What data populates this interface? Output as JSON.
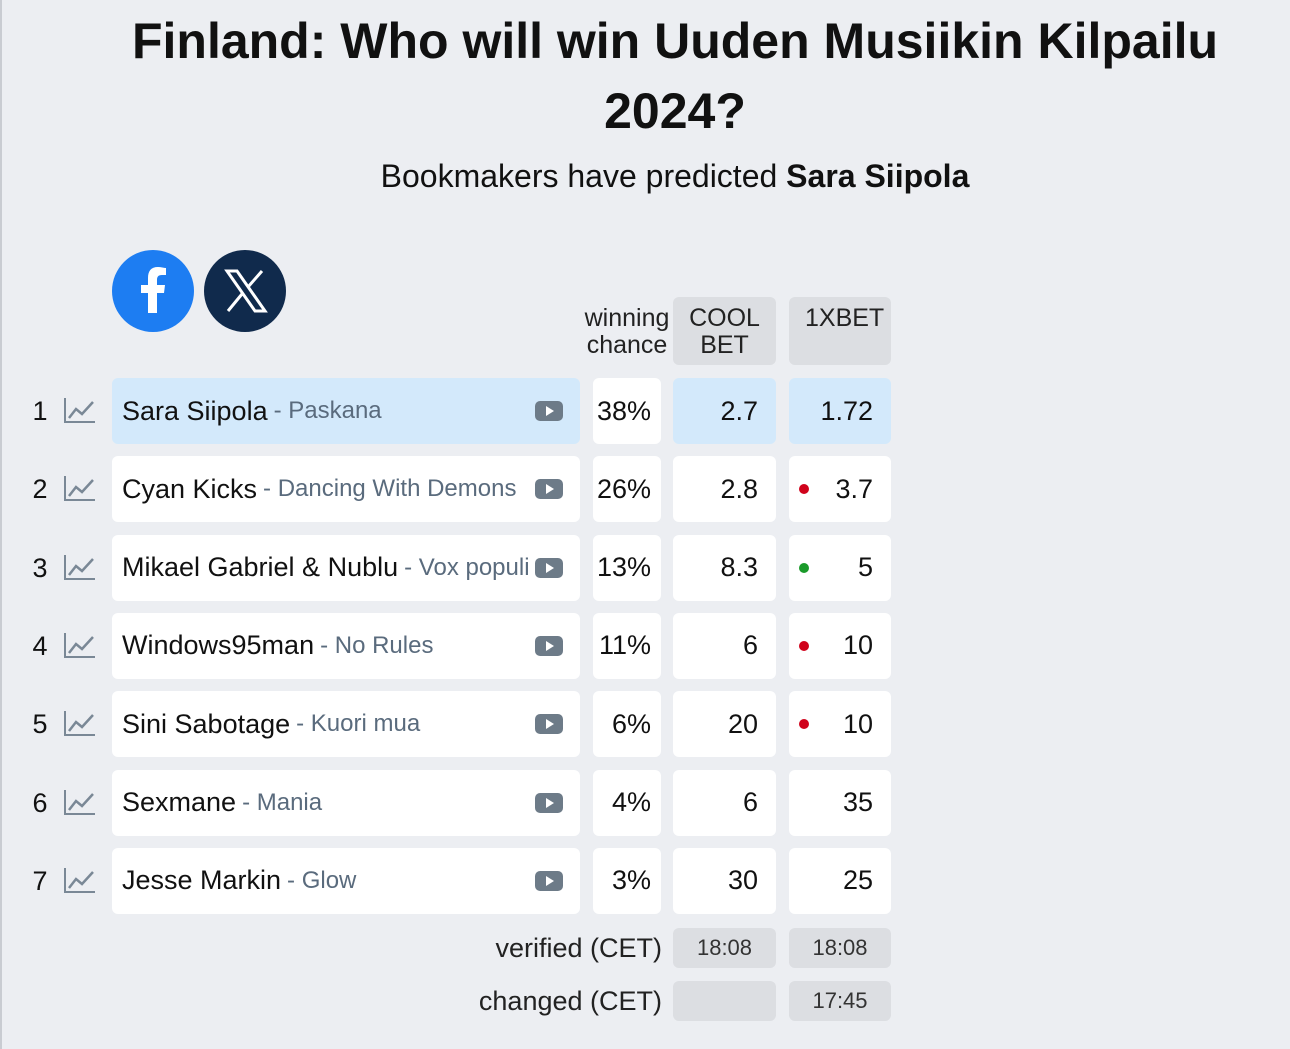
{
  "header": {
    "title": "Finland: Who will win Uuden Musiikin Kilpailu 2024?",
    "subtitle": "Bookmakers have predicted",
    "subtitle_pick": "Sara Siipola"
  },
  "table": {
    "columns": [
      "winning chance",
      "COOL BET",
      "1XBET"
    ],
    "rows": [
      {
        "rank": 1,
        "artist": "Sara Siipola",
        "song": "- Paskana",
        "chance": "38%",
        "coolbet": "2.7",
        "xbet": "1.72",
        "highlight": true
      },
      {
        "rank": 2,
        "artist": "Cyan Kicks",
        "song": "- Dancing With Demons",
        "chance": "26%",
        "coolbet": "2.8",
        "xbet": "3.7",
        "marker": "#d0021b"
      },
      {
        "rank": 3,
        "artist": "Mikael Gabriel & Nublu",
        "song": "- Vox populi",
        "chance": "13%",
        "coolbet": "8.3",
        "xbet": "5",
        "marker": "#1a9a2a"
      },
      {
        "rank": 4,
        "artist": "Windows95man",
        "song": "- No Rules",
        "chance": "11%",
        "coolbet": "6",
        "xbet": "10",
        "marker": "#d0021b"
      },
      {
        "rank": 5,
        "artist": "Sini Sabotage",
        "song": "- Kuori mua",
        "chance": "6%",
        "coolbet": "20",
        "xbet": "10",
        "marker": "#d0021b"
      },
      {
        "rank": 6,
        "artist": "Sexmane",
        "song": "- Mania",
        "chance": "4%",
        "coolbet": "6",
        "xbet": "35"
      },
      {
        "rank": 7,
        "artist": "Jesse Markin",
        "song": "- Glow",
        "chance": "3%",
        "coolbet": "30",
        "xbet": "25"
      }
    ],
    "footer": [
      {
        "label": "verified (CET)",
        "values": [
          "18:08",
          "18:08"
        ]
      },
      {
        "label": "changed (CET)",
        "values": [
          null,
          "17:45"
        ]
      }
    ]
  }
}
